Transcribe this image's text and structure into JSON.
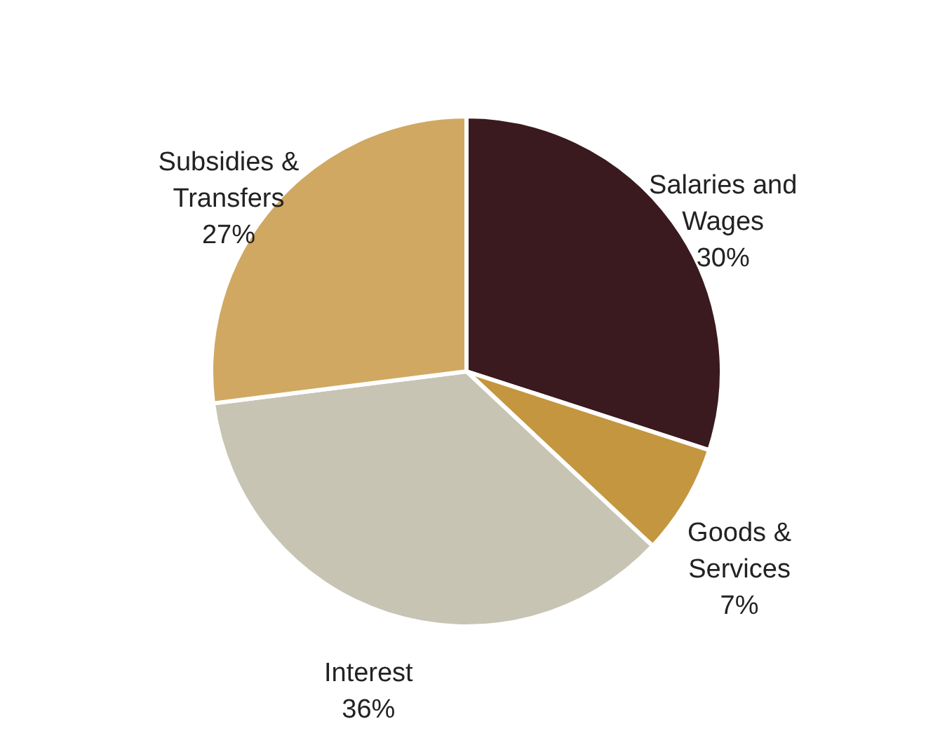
{
  "chart_data": {
    "type": "pie",
    "categories": [
      "Salaries and Wages",
      "Goods & Services",
      "Interest",
      "Subsidies & Transfers"
    ],
    "values": [
      30,
      7,
      36,
      27
    ],
    "colors": [
      "#3a1a1e",
      "#c4963f",
      "#c8c4b4",
      "#d0a862"
    ],
    "value_labels": [
      "30%",
      "7%",
      "36%",
      "27%"
    ]
  }
}
